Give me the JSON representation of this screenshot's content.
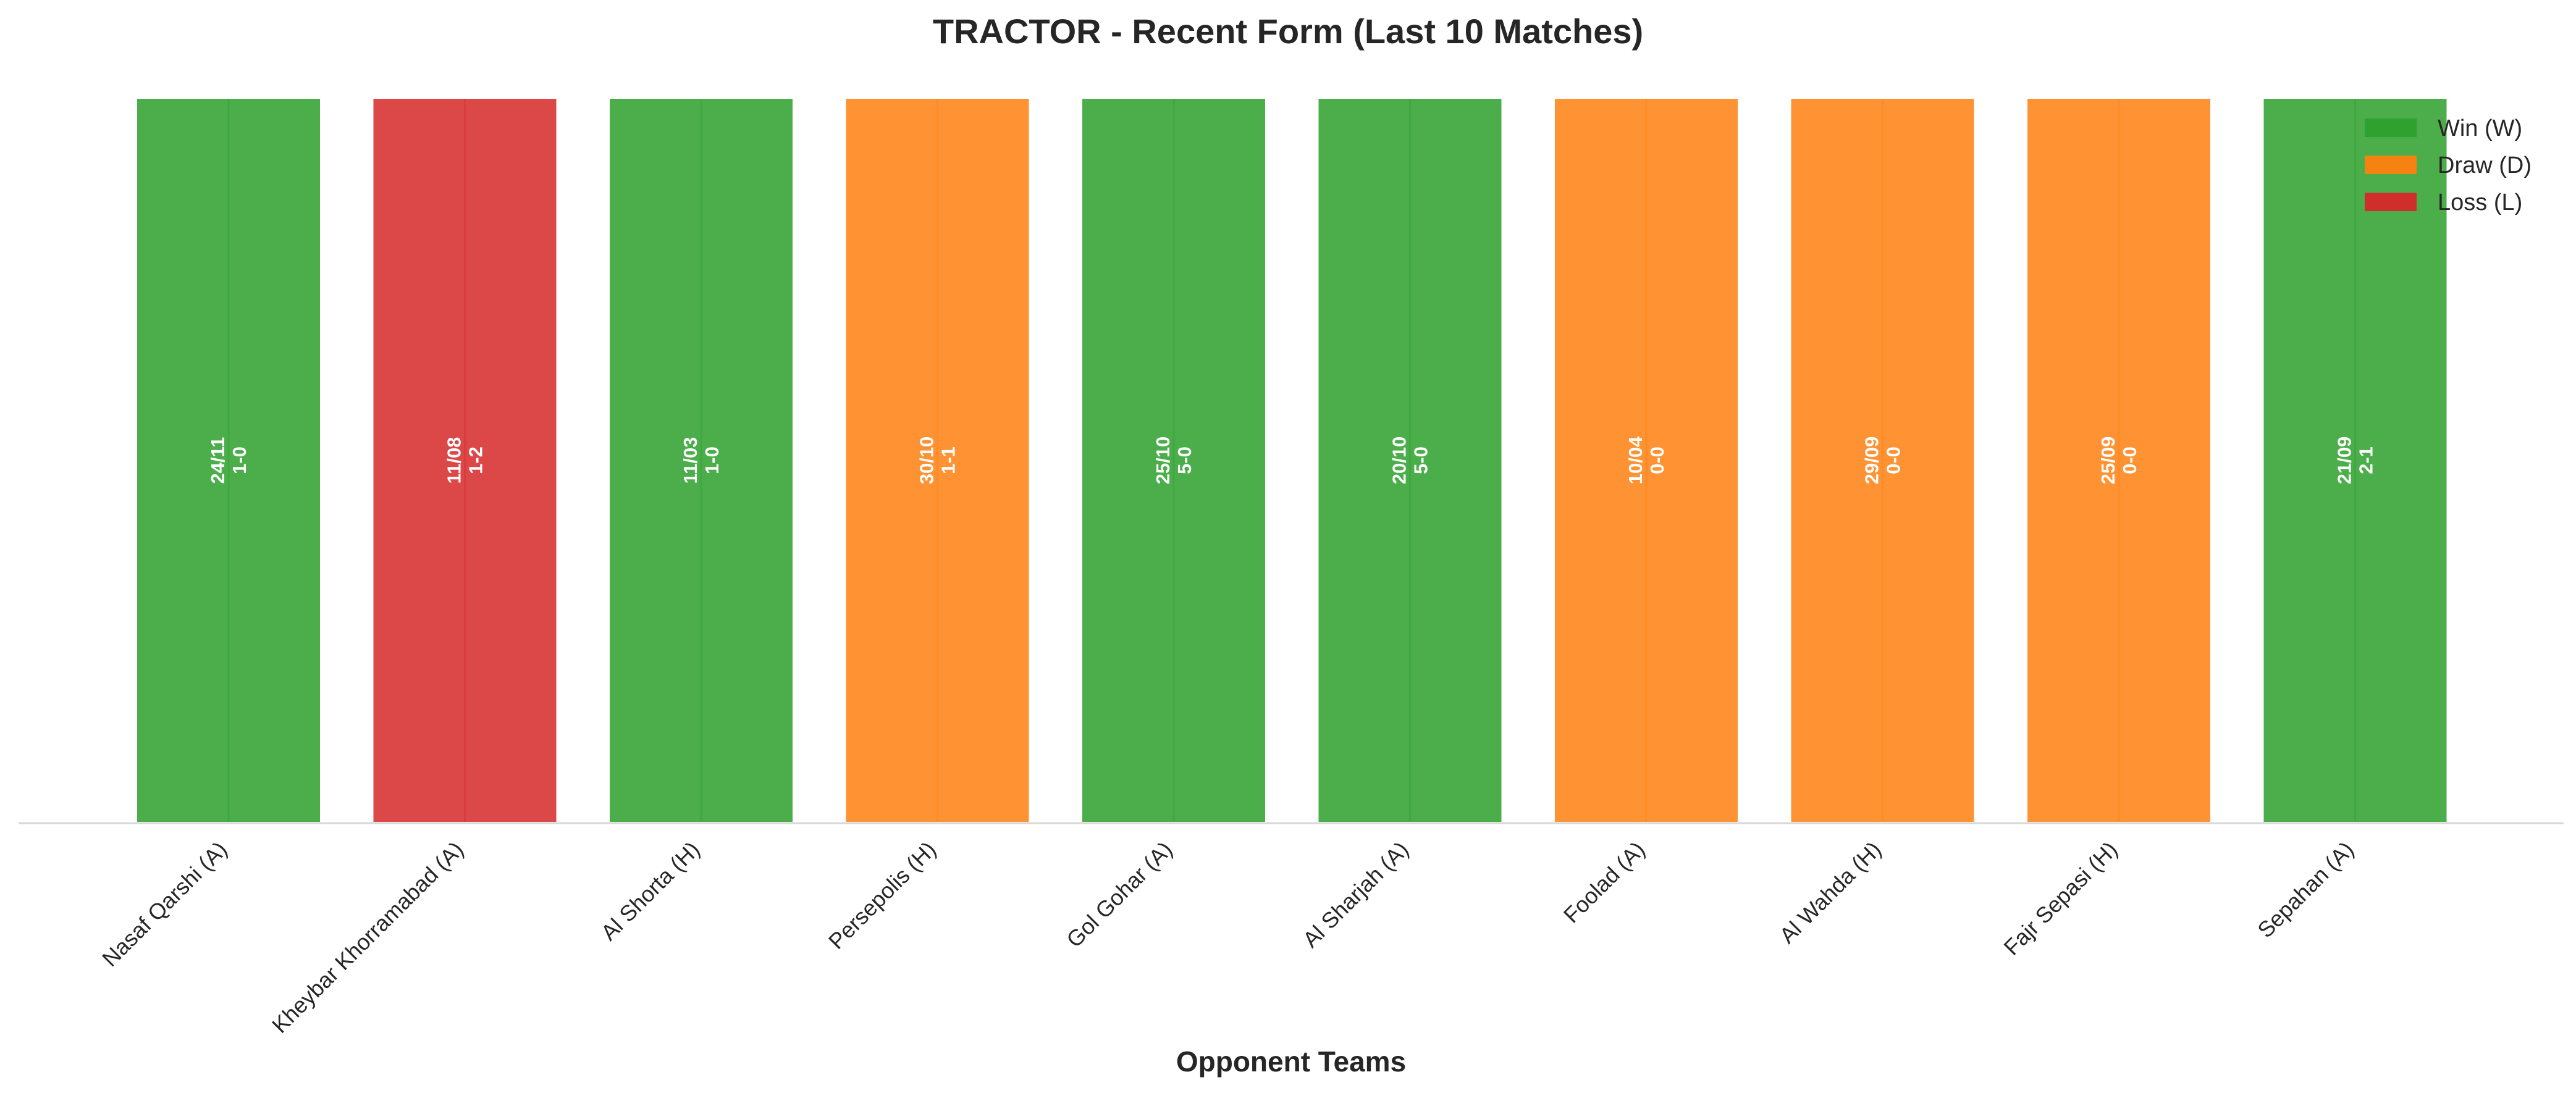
{
  "chart_data": {
    "type": "bar",
    "title": "TRACTOR - Recent Form (Last 10 Matches)",
    "xlabel": "Opponent Teams",
    "ylabel": "",
    "ylim": [
      0,
      1
    ],
    "grid": false,
    "legend_position": "top-right",
    "categories": [
      "Nasaf Qarshi (A)",
      "Kheybar Khorramabad (A)",
      "Al Shorta (H)",
      "Persepolis (H)",
      "Gol Gohar (A)",
      "Al Sharjah (A)",
      "Foolad (A)",
      "Al Wahda (H)",
      "Fajr Sepasi (H)",
      "Sepahan (A)"
    ],
    "values": [
      1,
      1,
      1,
      1,
      1,
      1,
      1,
      1,
      1,
      1
    ],
    "results": [
      "W",
      "L",
      "W",
      "D",
      "W",
      "W",
      "D",
      "D",
      "D",
      "W"
    ],
    "dates": [
      "24/11",
      "11/08",
      "11/03",
      "30/10",
      "25/10",
      "20/10",
      "10/04",
      "29/09",
      "25/09",
      "21/09"
    ],
    "scores": [
      "1-0",
      "1-2",
      "1-0",
      "1-1",
      "5-0",
      "5-0",
      "0-0",
      "0-0",
      "0-0",
      "2-1"
    ],
    "colors": {
      "W": "#2ca02c",
      "D": "#ff7f0e",
      "L": "#d62728"
    },
    "legend": [
      {
        "key": "W",
        "label": "Win (W)"
      },
      {
        "key": "D",
        "label": "Draw (D)"
      },
      {
        "key": "L",
        "label": "Loss (L)"
      }
    ]
  }
}
